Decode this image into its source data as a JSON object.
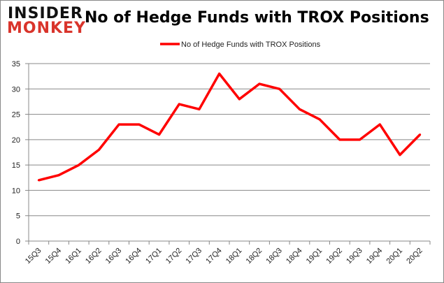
{
  "logo": {
    "line1": "INSIDER",
    "line2": "MONKEY"
  },
  "chart_data": {
    "type": "line",
    "title": "No of Hedge Funds with TROX Positions",
    "categories": [
      "15Q3",
      "15Q4",
      "16Q1",
      "16Q2",
      "16Q3",
      "16Q4",
      "17Q1",
      "17Q2",
      "17Q3",
      "17Q4",
      "18Q1",
      "18Q2",
      "18Q3",
      "18Q4",
      "19Q1",
      "19Q2",
      "19Q3",
      "19Q4",
      "20Q1",
      "20Q2"
    ],
    "series": [
      {
        "name": "No of Hedge Funds with TROX Positions",
        "color": "#ff0000",
        "values": [
          12,
          13,
          15,
          18,
          23,
          23,
          21,
          27,
          26,
          33,
          28,
          31,
          30,
          26,
          24,
          20,
          20,
          23,
          17,
          21
        ]
      }
    ],
    "ylim": [
      0,
      35
    ],
    "yticks": [
      0,
      5,
      10,
      15,
      20,
      25,
      30,
      35
    ],
    "grid": true,
    "legend": "top"
  }
}
